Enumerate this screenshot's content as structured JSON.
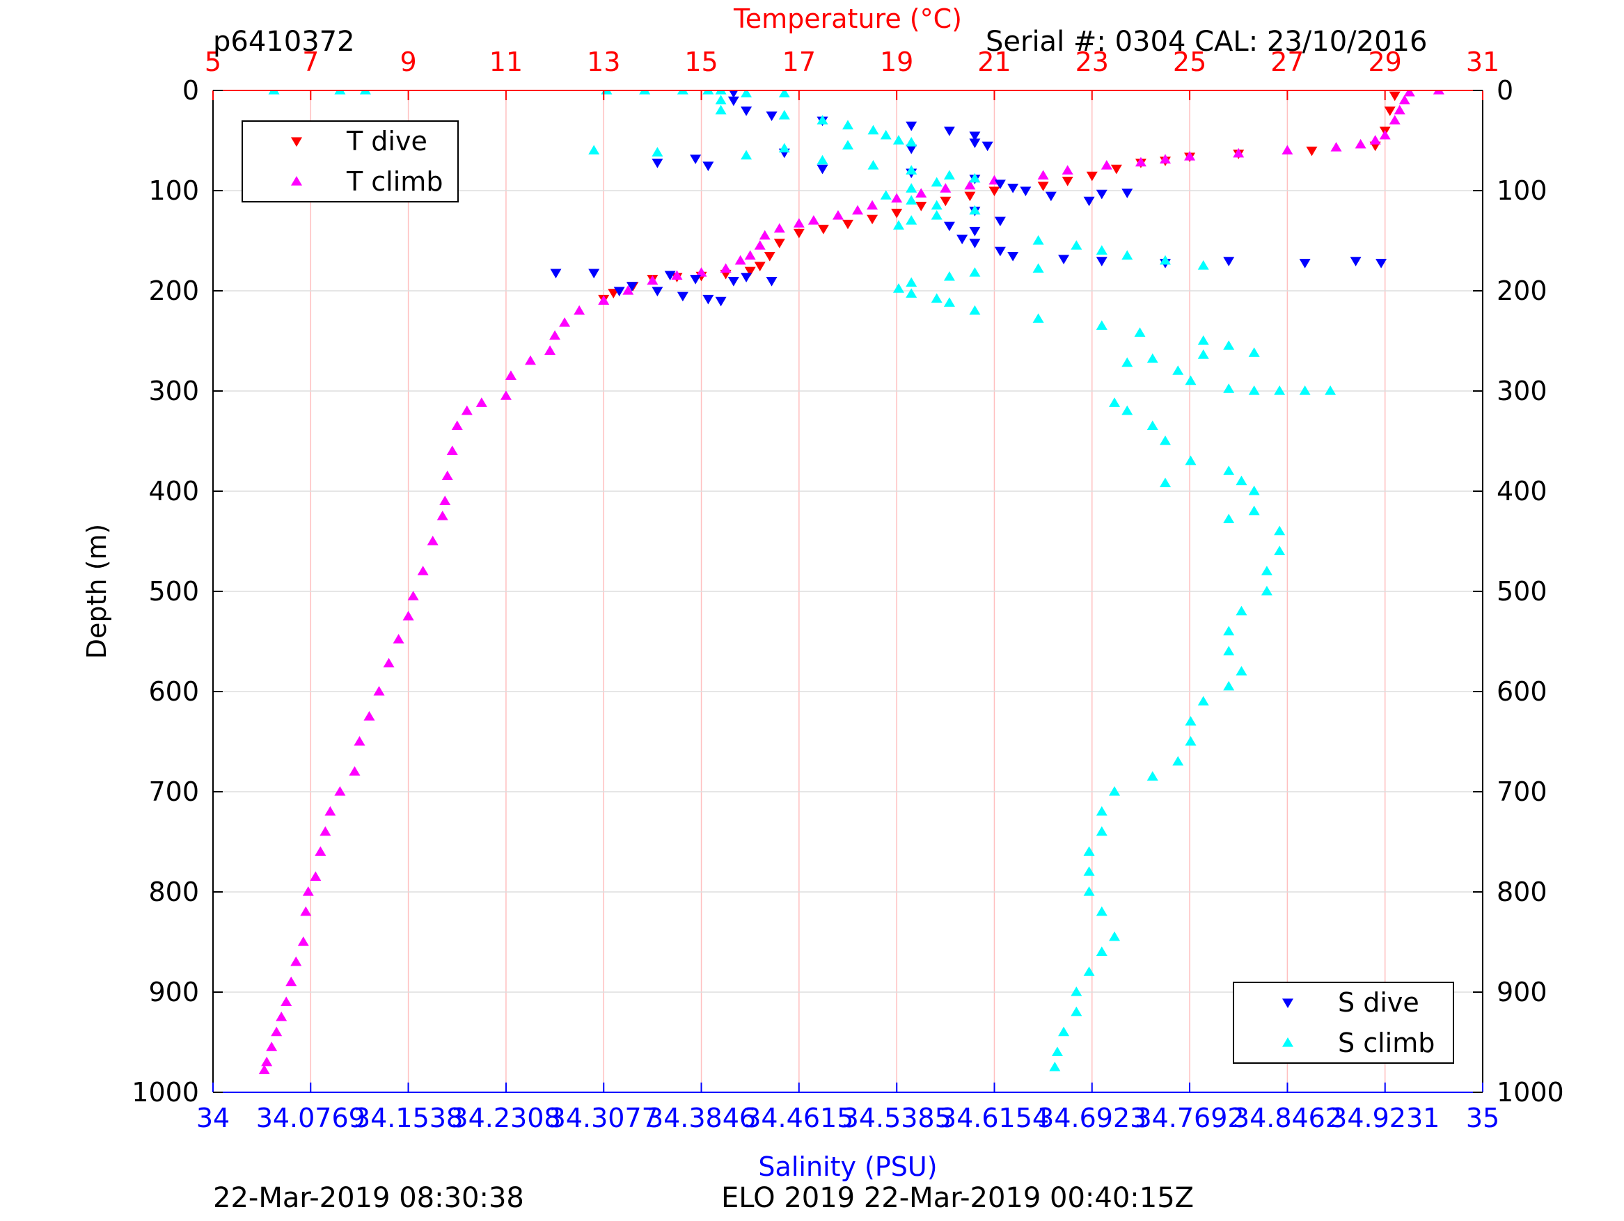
{
  "header": {
    "profile_id": "p6410372",
    "serial": "Serial #: 0304  CAL: 23/10/2016"
  },
  "footer": {
    "left": "22-Mar-2019 08:30:38",
    "center": "ELO 2019 22-Mar-2019 00:40:15Z"
  },
  "colors": {
    "t_dive": "#ff0000",
    "t_climb": "#ff00ff",
    "s_dive": "#0000ff",
    "s_climb": "#00ffff",
    "temp_axis": "#ff0000",
    "sal_axis": "#0000ff",
    "grid": "#ffbfbf"
  },
  "chart_data": {
    "type": "scatter",
    "y_axis": {
      "label": "Depth (m)",
      "range": [
        0,
        1000
      ],
      "reversed": true,
      "ticks": [
        0,
        100,
        200,
        300,
        400,
        500,
        600,
        700,
        800,
        900,
        1000
      ],
      "tick_labels": [
        "0",
        "100",
        "200",
        "300",
        "400",
        "500",
        "600",
        "700",
        "800",
        "900",
        "1000"
      ]
    },
    "temperature_axis": {
      "label": "Temperature (°C)",
      "position": "top",
      "range": [
        5,
        31
      ],
      "ticks": [
        5,
        7,
        9,
        11,
        13,
        15,
        17,
        19,
        21,
        23,
        25,
        27,
        29,
        31
      ],
      "tick_labels": [
        "5",
        "7",
        "9",
        "11",
        "13",
        "15",
        "17",
        "19",
        "21",
        "23",
        "25",
        "27",
        "29",
        "31"
      ]
    },
    "salinity_axis": {
      "label": "Salinity (PSU)",
      "position": "bottom",
      "range": [
        34,
        35
      ],
      "ticks": [
        34,
        34.0769,
        34.1538,
        34.2308,
        34.3077,
        34.3846,
        34.4615,
        34.5385,
        34.6154,
        34.6923,
        34.7692,
        34.8462,
        34.9231,
        35
      ],
      "tick_labels": [
        "34",
        "34.0769",
        "34.1538",
        "34.2308",
        "34.3077",
        "34.3846",
        "34.4615",
        "34.5385",
        "34.6154",
        "34.6923",
        "34.7692",
        "34.8462",
        "34.9231",
        "35"
      ]
    },
    "grid": "vertical",
    "legends": [
      {
        "placement": "top-left",
        "entries": [
          {
            "label": "T dive",
            "series": "t_dive"
          },
          {
            "label": "T climb",
            "series": "t_climb"
          }
        ]
      },
      {
        "placement": "bottom-right",
        "entries": [
          {
            "label": "S dive",
            "series": "s_dive"
          },
          {
            "label": "S climb",
            "series": "s_climb"
          }
        ]
      }
    ],
    "series": [
      {
        "id": "t_dive",
        "name": "T dive",
        "axis": "temperature",
        "marker": "triangle-down",
        "points": [
          [
            29.2,
            5
          ],
          [
            29.1,
            20
          ],
          [
            29.0,
            40
          ],
          [
            28.8,
            55
          ],
          [
            27.5,
            60
          ],
          [
            26.0,
            63
          ],
          [
            25.0,
            66
          ],
          [
            24.5,
            70
          ],
          [
            24.0,
            72
          ],
          [
            23.5,
            78
          ],
          [
            23.0,
            85
          ],
          [
            22.5,
            90
          ],
          [
            22.0,
            95
          ],
          [
            21.0,
            100
          ],
          [
            20.5,
            105
          ],
          [
            20.0,
            110
          ],
          [
            19.5,
            115
          ],
          [
            19.0,
            122
          ],
          [
            18.5,
            128
          ],
          [
            18.0,
            133
          ],
          [
            17.5,
            138
          ],
          [
            17.0,
            142
          ],
          [
            16.6,
            152
          ],
          [
            16.4,
            165
          ],
          [
            16.2,
            175
          ],
          [
            16.0,
            180
          ],
          [
            15.5,
            183
          ],
          [
            15.0,
            185
          ],
          [
            14.5,
            186
          ],
          [
            14.0,
            188
          ],
          [
            13.6,
            195
          ],
          [
            13.2,
            202
          ],
          [
            13.0,
            208
          ]
        ]
      },
      {
        "id": "t_climb",
        "name": "T climb",
        "axis": "temperature",
        "marker": "triangle-up",
        "points": [
          [
            30.1,
            0
          ],
          [
            29.5,
            2
          ],
          [
            29.4,
            10
          ],
          [
            29.3,
            20
          ],
          [
            29.2,
            30
          ],
          [
            29.0,
            45
          ],
          [
            28.8,
            50
          ],
          [
            28.5,
            54
          ],
          [
            28.0,
            57
          ],
          [
            27.0,
            60
          ],
          [
            26.0,
            63
          ],
          [
            25.0,
            66
          ],
          [
            24.5,
            69
          ],
          [
            24.0,
            72
          ],
          [
            23.3,
            75
          ],
          [
            22.5,
            80
          ],
          [
            22.0,
            85
          ],
          [
            21.0,
            90
          ],
          [
            20.5,
            95
          ],
          [
            20.0,
            98
          ],
          [
            19.5,
            103
          ],
          [
            19.0,
            108
          ],
          [
            18.5,
            115
          ],
          [
            18.2,
            120
          ],
          [
            17.8,
            125
          ],
          [
            17.3,
            130
          ],
          [
            17.0,
            133
          ],
          [
            16.6,
            138
          ],
          [
            16.3,
            145
          ],
          [
            16.2,
            155
          ],
          [
            16.0,
            165
          ],
          [
            15.8,
            170
          ],
          [
            15.5,
            178
          ],
          [
            15.0,
            182
          ],
          [
            14.5,
            185
          ],
          [
            14.0,
            190
          ],
          [
            13.5,
            200
          ],
          [
            13.0,
            210
          ],
          [
            12.5,
            220
          ],
          [
            12.2,
            232
          ],
          [
            12.0,
            245
          ],
          [
            11.9,
            260
          ],
          [
            11.5,
            270
          ],
          [
            11.1,
            285
          ],
          [
            11.0,
            305
          ],
          [
            10.5,
            312
          ],
          [
            10.2,
            320
          ],
          [
            10.0,
            335
          ],
          [
            9.9,
            360
          ],
          [
            9.8,
            385
          ],
          [
            9.75,
            410
          ],
          [
            9.7,
            425
          ],
          [
            9.5,
            450
          ],
          [
            9.3,
            480
          ],
          [
            9.1,
            505
          ],
          [
            9.0,
            525
          ],
          [
            8.8,
            548
          ],
          [
            8.6,
            572
          ],
          [
            8.4,
            600
          ],
          [
            8.2,
            625
          ],
          [
            8.0,
            650
          ],
          [
            7.9,
            680
          ],
          [
            7.6,
            700
          ],
          [
            7.4,
            720
          ],
          [
            7.3,
            740
          ],
          [
            7.2,
            760
          ],
          [
            7.1,
            785
          ],
          [
            6.95,
            800
          ],
          [
            6.9,
            820
          ],
          [
            6.85,
            850
          ],
          [
            6.7,
            870
          ],
          [
            6.6,
            890
          ],
          [
            6.5,
            910
          ],
          [
            6.4,
            925
          ],
          [
            6.3,
            940
          ],
          [
            6.2,
            955
          ],
          [
            6.1,
            970
          ],
          [
            6.05,
            978
          ]
        ]
      },
      {
        "id": "s_dive",
        "name": "S dive",
        "axis": "salinity",
        "marker": "triangle-down",
        "points": [
          [
            34.41,
            2
          ],
          [
            34.41,
            10
          ],
          [
            34.42,
            20
          ],
          [
            34.44,
            25
          ],
          [
            34.48,
            30
          ],
          [
            34.55,
            35
          ],
          [
            34.58,
            40
          ],
          [
            34.6,
            45
          ],
          [
            34.6,
            52
          ],
          [
            34.61,
            55
          ],
          [
            34.55,
            58
          ],
          [
            34.45,
            62
          ],
          [
            34.38,
            68
          ],
          [
            34.35,
            72
          ],
          [
            34.39,
            75
          ],
          [
            34.48,
            78
          ],
          [
            34.55,
            82
          ],
          [
            34.6,
            88
          ],
          [
            34.62,
            93
          ],
          [
            34.63,
            97
          ],
          [
            34.64,
            100
          ],
          [
            34.66,
            105
          ],
          [
            34.69,
            110
          ],
          [
            34.7,
            103
          ],
          [
            34.72,
            102
          ],
          [
            34.6,
            120
          ],
          [
            34.62,
            130
          ],
          [
            34.58,
            135
          ],
          [
            34.6,
            140
          ],
          [
            34.59,
            148
          ],
          [
            34.6,
            152
          ],
          [
            34.62,
            160
          ],
          [
            34.63,
            165
          ],
          [
            34.67,
            168
          ],
          [
            34.7,
            170
          ],
          [
            34.75,
            172
          ],
          [
            34.8,
            170
          ],
          [
            34.86,
            172
          ],
          [
            34.9,
            170
          ],
          [
            34.92,
            172
          ],
          [
            34.27,
            182
          ],
          [
            34.3,
            182
          ],
          [
            34.36,
            184
          ],
          [
            34.38,
            188
          ],
          [
            34.41,
            190
          ],
          [
            34.42,
            186
          ],
          [
            34.44,
            190
          ],
          [
            34.33,
            195
          ],
          [
            34.32,
            200
          ],
          [
            34.35,
            200
          ],
          [
            34.37,
            205
          ],
          [
            34.39,
            208
          ],
          [
            34.4,
            210
          ]
        ]
      },
      {
        "id": "s_climb",
        "name": "S climb",
        "axis": "salinity",
        "marker": "triangle-up",
        "points": [
          [
            34.048,
            0
          ],
          [
            34.1,
            0
          ],
          [
            34.12,
            0
          ],
          [
            34.31,
            0
          ],
          [
            34.34,
            0
          ],
          [
            34.37,
            0
          ],
          [
            34.39,
            0
          ],
          [
            34.4,
            0
          ],
          [
            34.42,
            3
          ],
          [
            34.45,
            3
          ],
          [
            34.4,
            10
          ],
          [
            34.4,
            20
          ],
          [
            34.45,
            25
          ],
          [
            34.48,
            30
          ],
          [
            34.5,
            35
          ],
          [
            34.52,
            40
          ],
          [
            34.53,
            45
          ],
          [
            34.54,
            50
          ],
          [
            34.55,
            52
          ],
          [
            34.5,
            55
          ],
          [
            34.45,
            58
          ],
          [
            34.3,
            60
          ],
          [
            34.35,
            62
          ],
          [
            34.42,
            65
          ],
          [
            34.48,
            70
          ],
          [
            34.52,
            75
          ],
          [
            34.55,
            80
          ],
          [
            34.58,
            85
          ],
          [
            34.6,
            88
          ],
          [
            34.57,
            92
          ],
          [
            34.55,
            98
          ],
          [
            34.53,
            105
          ],
          [
            34.55,
            110
          ],
          [
            34.57,
            115
          ],
          [
            34.6,
            120
          ],
          [
            34.57,
            125
          ],
          [
            34.55,
            130
          ],
          [
            34.54,
            135
          ],
          [
            34.65,
            150
          ],
          [
            34.68,
            155
          ],
          [
            34.7,
            160
          ],
          [
            34.72,
            165
          ],
          [
            34.75,
            170
          ],
          [
            34.78,
            175
          ],
          [
            34.65,
            178
          ],
          [
            34.6,
            182
          ],
          [
            34.58,
            186
          ],
          [
            34.55,
            192
          ],
          [
            34.54,
            198
          ],
          [
            34.55,
            203
          ],
          [
            34.57,
            208
          ],
          [
            34.58,
            212
          ],
          [
            34.6,
            220
          ],
          [
            34.65,
            228
          ],
          [
            34.7,
            235
          ],
          [
            34.73,
            242
          ],
          [
            34.78,
            250
          ],
          [
            34.8,
            255
          ],
          [
            34.82,
            262
          ],
          [
            34.78,
            264
          ],
          [
            34.74,
            268
          ],
          [
            34.72,
            272
          ],
          [
            34.76,
            280
          ],
          [
            34.77,
            290
          ],
          [
            34.8,
            298
          ],
          [
            34.82,
            300
          ],
          [
            34.84,
            300
          ],
          [
            34.86,
            300
          ],
          [
            34.88,
            300
          ],
          [
            34.71,
            312
          ],
          [
            34.72,
            320
          ],
          [
            34.74,
            335
          ],
          [
            34.75,
            350
          ],
          [
            34.77,
            370
          ],
          [
            34.8,
            380
          ],
          [
            34.81,
            390
          ],
          [
            34.82,
            400
          ],
          [
            34.82,
            420
          ],
          [
            34.84,
            440
          ],
          [
            34.84,
            460
          ],
          [
            34.83,
            480
          ],
          [
            34.83,
            500
          ],
          [
            34.81,
            520
          ],
          [
            34.8,
            540
          ],
          [
            34.8,
            560
          ],
          [
            34.81,
            580
          ],
          [
            34.8,
            595
          ],
          [
            34.78,
            610
          ],
          [
            34.77,
            630
          ],
          [
            34.77,
            650
          ],
          [
            34.76,
            670
          ],
          [
            34.74,
            685
          ],
          [
            34.71,
            700
          ],
          [
            34.7,
            720
          ],
          [
            34.7,
            740
          ],
          [
            34.69,
            760
          ],
          [
            34.69,
            780
          ],
          [
            34.69,
            800
          ],
          [
            34.7,
            820
          ],
          [
            34.71,
            845
          ],
          [
            34.7,
            860
          ],
          [
            34.69,
            880
          ],
          [
            34.68,
            900
          ],
          [
            34.68,
            920
          ],
          [
            34.67,
            940
          ],
          [
            34.665,
            960
          ],
          [
            34.663,
            975
          ],
          [
            34.8,
            428
          ],
          [
            34.75,
            392
          ]
        ]
      }
    ]
  }
}
